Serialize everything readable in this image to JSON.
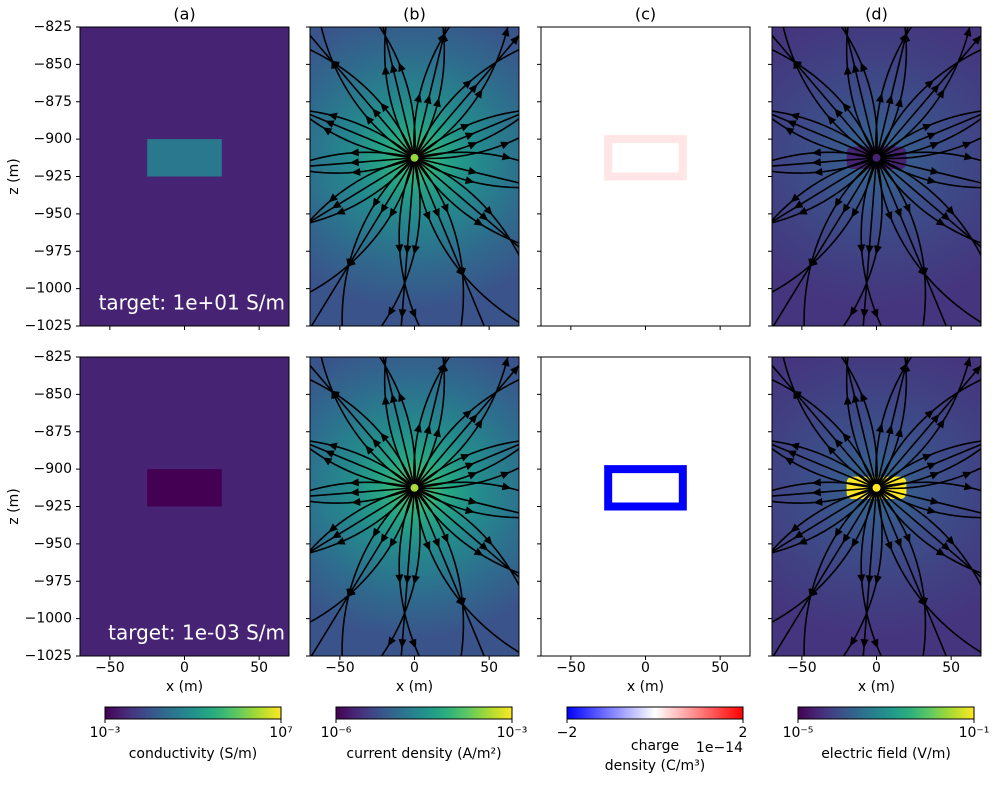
{
  "chart_data": [
    {
      "type": "model",
      "title": "(a)",
      "xlabel": "x (m)",
      "ylabel": "z (m)",
      "xlim": [
        -70,
        70
      ],
      "ylim": [
        -1025,
        -825
      ],
      "xticks": [
        {
          "value": -50,
          "label": "−50"
        },
        0,
        50
      ],
      "yticks": [
        {
          "value": -825,
          "label": "−825"
        },
        {
          "value": -850,
          "label": "−850"
        },
        {
          "value": -875,
          "label": "−875"
        },
        {
          "value": -900,
          "label": "−900"
        },
        {
          "value": -925,
          "label": "−925"
        },
        {
          "value": -950,
          "label": "−950"
        },
        {
          "value": -975,
          "label": "−975"
        },
        {
          "value": -1000,
          "label": "−1000"
        },
        {
          "value": -1025,
          "label": "−1025"
        }
      ],
      "target_x": [
        -25,
        25
      ],
      "target_z": [
        -925,
        -900
      ],
      "rows": [
        {
          "annotation": "target: 1e+01 S/m",
          "background": 0.01,
          "target": 10
        },
        {
          "annotation": "target: 1e-03 S/m",
          "background": 0.01,
          "target": 0.001
        }
      ],
      "colorbar": {
        "cmap": "viridis",
        "log": true,
        "lim": [
          0.001,
          10000000
        ],
        "ticks": [
          {
            "value": 0.001,
            "label": "10⁻³"
          },
          {
            "value": 10000000,
            "label": "10⁷"
          }
        ],
        "label": [
          "conductivity (S/m)"
        ]
      }
    },
    {
      "type": "streamplot",
      "title": "(b)",
      "xlabel": "x (m)",
      "xlim": [
        -70,
        70
      ],
      "ylim": [
        -1025,
        -825
      ],
      "xticks": [
        {
          "value": -50,
          "label": "−50"
        },
        0,
        50
      ],
      "yticks": [
        -825,
        -850,
        -875,
        -900,
        -925,
        -950,
        -975,
        -1000,
        -1025
      ],
      "target_x": [
        -25,
        25
      ],
      "target_z": [
        -925,
        -900
      ],
      "rows": [
        {
          "edge": 6e-06,
          "peak": 0.0004
        },
        {
          "edge": 6e-06,
          "peak": 0.0005
        }
      ],
      "colorbar": {
        "cmap": "viridis",
        "log": true,
        "lim": [
          1e-06,
          0.001
        ],
        "ticks": [
          {
            "value": 1e-06,
            "label": "10⁻⁶"
          },
          {
            "value": 0.001,
            "label": "10⁻³"
          }
        ],
        "label": [
          "current density (A/m²)"
        ]
      }
    },
    {
      "type": "charge",
      "title": "(c)",
      "xlabel": "x (m)",
      "xlim": [
        -70,
        70
      ],
      "ylim": [
        -1025,
        -825
      ],
      "xticks": [
        {
          "value": -50,
          "label": "−50"
        },
        0,
        50
      ],
      "yticks": [
        -825,
        -850,
        -875,
        -900,
        -925,
        -950,
        -975,
        -1000,
        -1025
      ],
      "target_x": [
        -25,
        25
      ],
      "target_z": [
        -925,
        -900
      ],
      "rows": [
        {
          "boundary": 0.2
        },
        {
          "boundary": -2
        }
      ],
      "colorbar": {
        "cmap": "bwr",
        "log": false,
        "lim": [
          -2,
          2
        ],
        "ticks": [
          {
            "value": -2,
            "label": "−2"
          },
          2
        ],
        "offset": "1e−14",
        "label": [
          "charge",
          "density (C/m³)"
        ]
      }
    },
    {
      "type": "streamplot",
      "title": "(d)",
      "xlabel": "x (m)",
      "xlim": [
        -70,
        70
      ],
      "ylim": [
        -1025,
        -825
      ],
      "xticks": [
        {
          "value": -50,
          "label": "−50"
        },
        0,
        50
      ],
      "yticks": [
        -825,
        -850,
        -875,
        -900,
        -925,
        -950,
        -975,
        -1000,
        -1025
      ],
      "target_x": [
        -20,
        20
      ],
      "target_z": [
        -920,
        -905
      ],
      "rows": [
        {
          "edge": 4e-05,
          "peak": 0.0004,
          "target": 2.5e-05
        },
        {
          "edge": 4e-05,
          "peak": 0.0004,
          "target": 0.1
        }
      ],
      "colorbar": {
        "cmap": "viridis",
        "log": true,
        "lim": [
          1e-05,
          0.1
        ],
        "ticks": [
          {
            "value": 1e-05,
            "label": "10⁻⁵"
          },
          {
            "value": 0.1,
            "label": "10⁻¹"
          }
        ],
        "label": [
          "electric field (V/m)"
        ]
      }
    }
  ]
}
